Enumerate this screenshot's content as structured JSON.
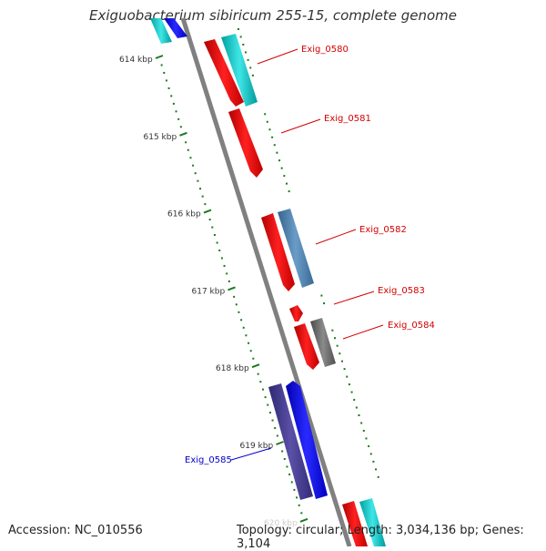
{
  "title": "Exiguobacterium sibiricum 255-15, complete genome",
  "footer": {
    "accession": "Accession: NC_010556",
    "summary": "Topology: circular; Length: 3,034,136 bp; Genes: 3,104"
  },
  "ticks": [
    {
      "label": "614 kbp",
      "bp": 614000
    },
    {
      "label": "615 kbp",
      "bp": 615000
    },
    {
      "label": "616 kbp",
      "bp": 616000
    },
    {
      "label": "617 kbp",
      "bp": 617000
    },
    {
      "label": "618 kbp",
      "bp": 618000
    },
    {
      "label": "619 kbp",
      "bp": 619000
    },
    {
      "label": "620 kbp",
      "bp": 620000
    }
  ],
  "gene_labels": [
    {
      "id": "Exig_0580",
      "color": "#d40000"
    },
    {
      "id": "Exig_0581",
      "color": "#d40000"
    },
    {
      "id": "Exig_0582",
      "color": "#d40000"
    },
    {
      "id": "Exig_0583",
      "color": "#d40000"
    },
    {
      "id": "Exig_0584",
      "color": "#d40000"
    },
    {
      "id": "Exig_0585",
      "color": "#0000c8"
    }
  ],
  "colors": {
    "red": "#ff0000",
    "cyan": "#00cccc",
    "steelblue": "#4682b4",
    "gray": "#666666",
    "blue": "#0000ff",
    "darkslate": "#483d8b",
    "tick_green": "#1a7a1a",
    "backbone": "#808080"
  }
}
